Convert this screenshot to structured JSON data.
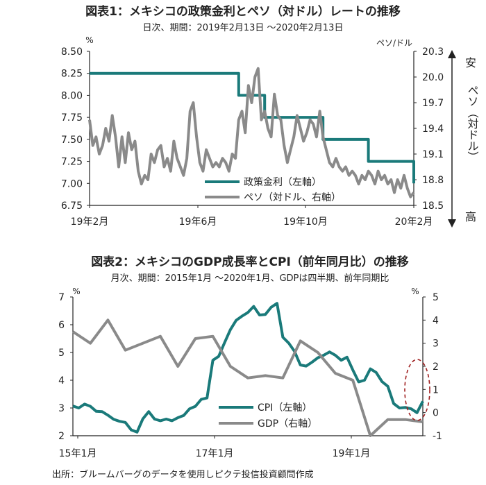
{
  "source": "出所：ブルームバーグのデータを使用しピクテ投信投資顧問作成",
  "chart_data": [
    {
      "type": "line",
      "title": "図表1：メキシコの政策金利とペソ（対ドル）レートの推移",
      "subtitle": "日次、期間：2019年2月13日 〜2020年2月13日",
      "y_left_unit": "%",
      "y_right_unit": "ペソ/ドル",
      "y_left_ticks": [
        "8.50",
        "8.25",
        "8.00",
        "7.75",
        "7.50",
        "7.25",
        "7.00",
        "6.75"
      ],
      "y_right_ticks": [
        "20.3",
        "20.0",
        "19.7",
        "19.4",
        "19.1",
        "18.8",
        "18.5"
      ],
      "ylim_left": [
        6.75,
        8.5
      ],
      "ylim_right": [
        18.5,
        20.3
      ],
      "x_ticks": [
        "19年2月",
        "19年6月",
        "19年10月",
        "20年2月"
      ],
      "right_axis_side_label": {
        "top": "安",
        "middle": "ペソ（対ドル）",
        "bottom": "高"
      },
      "series": [
        {
          "name": "政策金利（左軸）",
          "axis": "left",
          "color": "#1a7a7a",
          "x": [
            0,
            0.46,
            0.46,
            0.54,
            0.54,
            0.72,
            0.72,
            0.86,
            0.86,
            1.0,
            1.0
          ],
          "values": [
            8.25,
            8.25,
            8.0,
            8.0,
            7.75,
            7.75,
            7.5,
            7.5,
            7.25,
            7.25,
            7.0
          ]
        },
        {
          "name": "ペソ（対ドル、右軸）",
          "axis": "right",
          "color": "#8a8a8a",
          "x": [
            0,
            0.01,
            0.02,
            0.03,
            0.04,
            0.05,
            0.06,
            0.07,
            0.08,
            0.09,
            0.1,
            0.11,
            0.12,
            0.13,
            0.14,
            0.15,
            0.16,
            0.17,
            0.18,
            0.19,
            0.2,
            0.21,
            0.22,
            0.23,
            0.24,
            0.25,
            0.26,
            0.27,
            0.28,
            0.29,
            0.3,
            0.31,
            0.32,
            0.33,
            0.34,
            0.35,
            0.36,
            0.37,
            0.38,
            0.39,
            0.4,
            0.41,
            0.42,
            0.43,
            0.44,
            0.45,
            0.46,
            0.47,
            0.48,
            0.49,
            0.5,
            0.51,
            0.52,
            0.53,
            0.54,
            0.55,
            0.56,
            0.57,
            0.58,
            0.59,
            0.6,
            0.61,
            0.62,
            0.63,
            0.64,
            0.65,
            0.66,
            0.67,
            0.68,
            0.69,
            0.7,
            0.71,
            0.72,
            0.73,
            0.74,
            0.75,
            0.76,
            0.77,
            0.78,
            0.79,
            0.8,
            0.81,
            0.82,
            0.83,
            0.84,
            0.85,
            0.86,
            0.87,
            0.88,
            0.89,
            0.9,
            0.91,
            0.92,
            0.93,
            0.94,
            0.95,
            0.96,
            0.97,
            0.98,
            0.99,
            1.0
          ],
          "values": [
            19.5,
            19.2,
            19.3,
            19.1,
            19.2,
            19.4,
            19.25,
            19.55,
            19.3,
            18.95,
            19.3,
            19.0,
            19.35,
            19.15,
            19.25,
            18.9,
            18.75,
            18.85,
            18.8,
            19.1,
            19.0,
            19.15,
            19.2,
            18.95,
            19.05,
            18.9,
            19.25,
            19.05,
            18.95,
            18.85,
            19.05,
            19.6,
            19.7,
            19.3,
            19.0,
            18.9,
            19.15,
            19.05,
            18.95,
            19.0,
            18.95,
            19.05,
            19.0,
            18.9,
            19.1,
            19.05,
            19.5,
            19.6,
            19.35,
            19.9,
            19.7,
            20.0,
            20.1,
            19.5,
            19.6,
            19.4,
            19.3,
            19.8,
            19.55,
            19.5,
            19.2,
            19.0,
            19.15,
            19.3,
            19.55,
            19.4,
            19.25,
            19.35,
            19.5,
            19.45,
            19.3,
            19.6,
            19.3,
            19.15,
            19.0,
            18.95,
            19.05,
            18.95,
            18.9,
            18.95,
            18.85,
            18.9,
            18.85,
            18.75,
            18.85,
            18.8,
            18.9,
            18.85,
            18.75,
            18.9,
            18.8,
            18.85,
            18.75,
            18.8,
            18.65,
            18.8,
            18.7,
            18.85,
            18.7,
            18.6,
            18.65
          ]
        }
      ]
    },
    {
      "type": "line",
      "title": "図表2：メキシコのGDP成長率とCPI（前年同月比）の推移",
      "subtitle": "月次、期間：2015年1月 〜2020年1月、GDPは四半期、前年同期比",
      "y_left_unit": "%",
      "y_right_unit": "%",
      "y_left_ticks": [
        "7",
        "6",
        "5",
        "4",
        "3",
        "2"
      ],
      "y_right_ticks": [
        "5",
        "4",
        "3",
        "2",
        "1",
        "0",
        "-1"
      ],
      "ylim_left": [
        2,
        7
      ],
      "ylim_right": [
        -1,
        5
      ],
      "x_ticks": [
        "15年1月",
        "17年1月",
        "19年1月"
      ],
      "series": [
        {
          "name": "CPI（左軸）",
          "axis": "left",
          "color": "#1a7a7a",
          "x": [
            0,
            1,
            2,
            3,
            4,
            5,
            6,
            7,
            8,
            9,
            10,
            11,
            12,
            13,
            14,
            15,
            16,
            17,
            18,
            19,
            20,
            21,
            22,
            23,
            24,
            25,
            26,
            27,
            28,
            29,
            30,
            31,
            32,
            33,
            34,
            35,
            36,
            37,
            38,
            39,
            40,
            41,
            42,
            43,
            44,
            45,
            46,
            47,
            48,
            49,
            50,
            51,
            52,
            53,
            54,
            55,
            56,
            57,
            58,
            59,
            60
          ],
          "values": [
            3.07,
            3.0,
            3.14,
            3.06,
            2.88,
            2.87,
            2.74,
            2.59,
            2.52,
            2.48,
            2.21,
            2.13,
            2.61,
            2.87,
            2.6,
            2.54,
            2.6,
            2.54,
            2.65,
            2.73,
            2.97,
            3.06,
            3.31,
            3.36,
            4.72,
            4.86,
            5.35,
            5.82,
            6.16,
            6.31,
            6.44,
            6.66,
            6.35,
            6.37,
            6.63,
            6.77,
            5.55,
            5.34,
            5.04,
            4.55,
            4.51,
            4.65,
            4.81,
            4.9,
            5.02,
            4.9,
            4.72,
            4.83,
            4.37,
            3.94,
            4.0,
            4.41,
            4.28,
            3.95,
            3.78,
            3.16,
            3.0,
            3.02,
            2.97,
            2.83,
            3.24
          ]
        },
        {
          "name": "GDP（右軸）",
          "axis": "right",
          "color": "#8a8a8a",
          "x": [
            0,
            3,
            6,
            9,
            12,
            15,
            18,
            21,
            24,
            27,
            30,
            33,
            36,
            39,
            42,
            45,
            48,
            51,
            54,
            57,
            60
          ],
          "values": [
            3.5,
            3.0,
            4.0,
            2.7,
            3.0,
            3.3,
            2.0,
            3.2,
            3.3,
            2.0,
            1.5,
            1.6,
            1.5,
            3.1,
            2.6,
            1.7,
            1.4,
            -1.0,
            -0.3,
            -0.3,
            -0.4
          ]
        }
      ]
    }
  ]
}
